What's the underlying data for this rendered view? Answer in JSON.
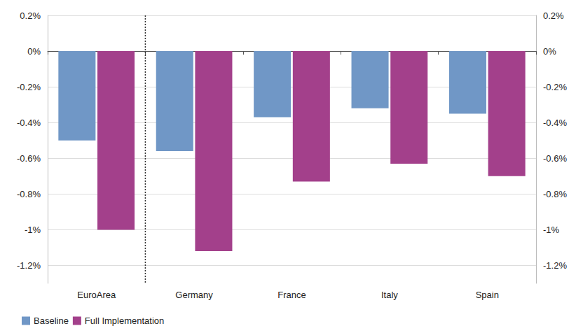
{
  "chart_data": {
    "type": "bar",
    "categories": [
      "EuroArea",
      "Germany",
      "France",
      "Italy",
      "Spain"
    ],
    "series": [
      {
        "name": "Baseline",
        "color": "#7097c6",
        "values": [
          -0.5,
          -0.56,
          -0.37,
          -0.32,
          -0.35
        ]
      },
      {
        "name": "Full Implementation",
        "color": "#a3408b",
        "values": [
          -1.0,
          -1.12,
          -0.73,
          -0.63,
          -0.7
        ]
      }
    ],
    "ylim": [
      -1.3,
      0.2
    ],
    "yticks": [
      {
        "value": 0.2,
        "label": "0.2%"
      },
      {
        "value": 0,
        "label": "0%"
      },
      {
        "value": -0.2,
        "label": "-0.2%"
      },
      {
        "value": -0.4,
        "label": "-0.4%"
      },
      {
        "value": -0.6,
        "label": "-0.6%"
      },
      {
        "value": -0.8,
        "label": "-0.8%"
      },
      {
        "value": -1,
        "label": "-1%"
      },
      {
        "value": -1.2,
        "label": "-1.2%"
      }
    ],
    "grid": true,
    "legend": "bottom-left"
  }
}
